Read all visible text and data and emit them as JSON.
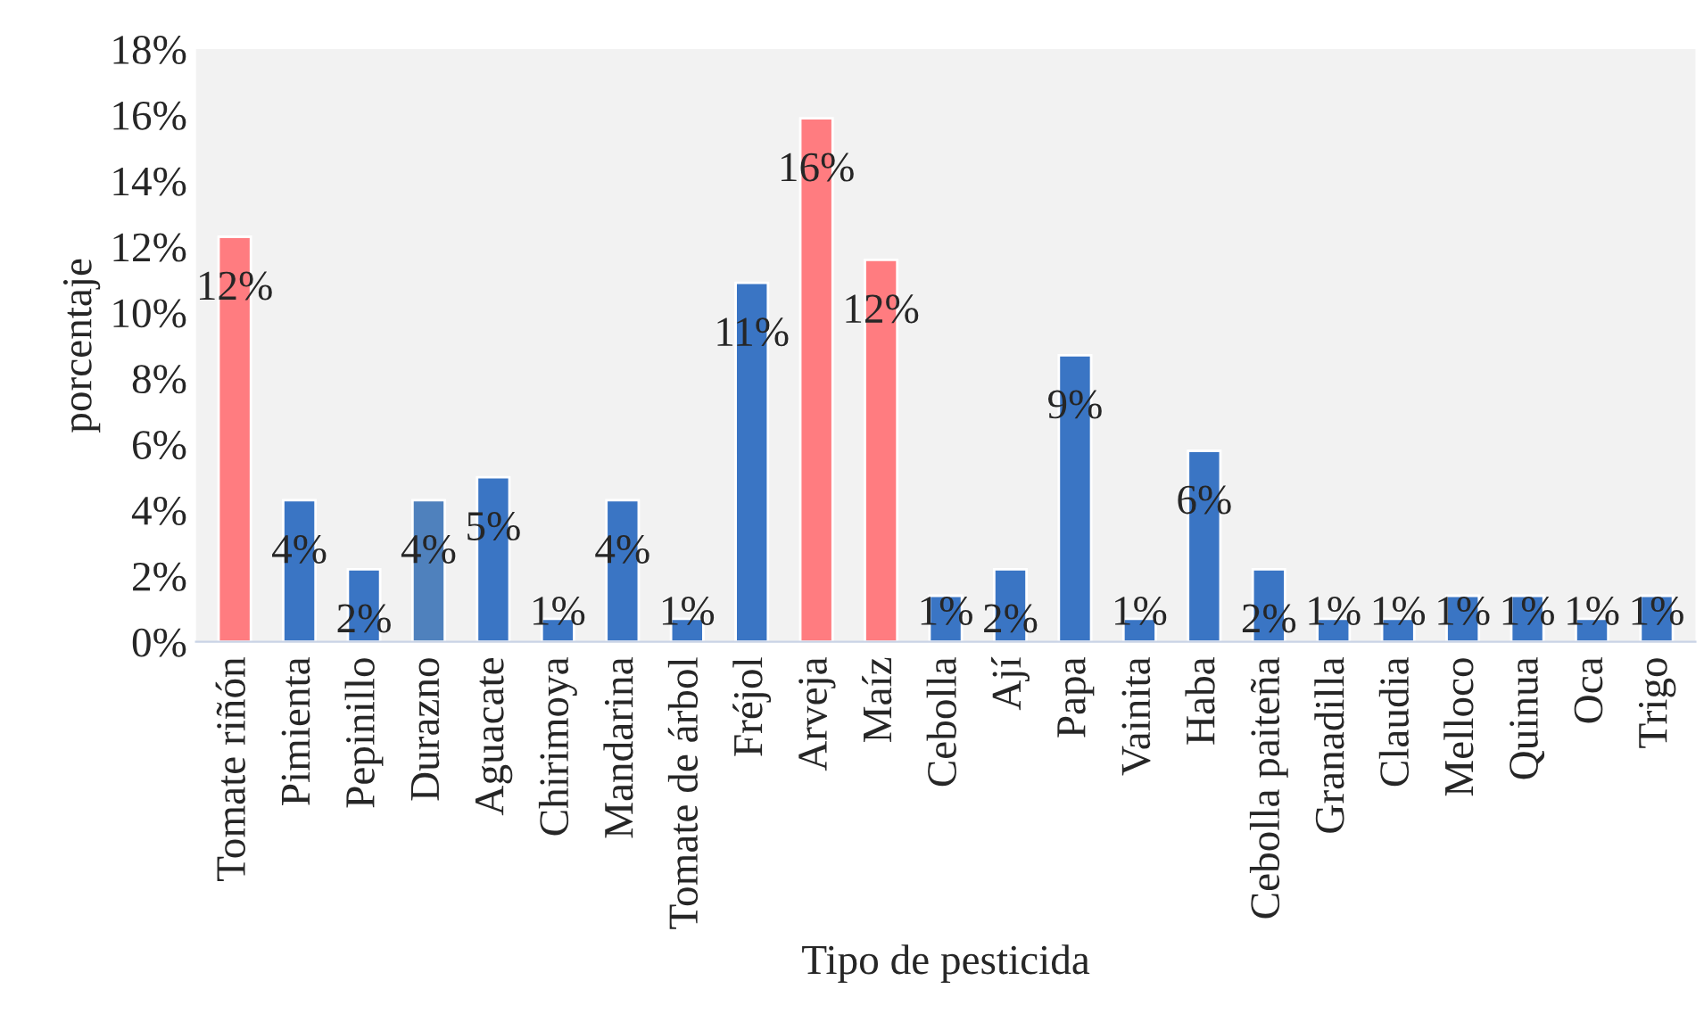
{
  "chart_data": {
    "type": "bar",
    "xlabel": "Tipo de pesticida",
    "ylabel": "porcentaje",
    "categories": [
      "Tomate riñón",
      "Pimienta",
      "Pepinillo",
      "Durazno",
      "Aguacate",
      "Chirimoya",
      "Mandarina",
      "Tomate de árbol",
      "Fréjol",
      "Arveja",
      "Maíz",
      "Cebolla",
      "Ají",
      "Papa",
      "Vainita",
      "Haba",
      "Cebolla paiteña",
      "Granadilla",
      "Claudia",
      "Melloco",
      "Quinua",
      "Oca",
      "Trigo"
    ],
    "values": [
      12.3,
      4.3,
      2.2,
      4.3,
      5.0,
      0.7,
      4.3,
      0.7,
      10.9,
      15.9,
      11.6,
      1.4,
      2.2,
      8.7,
      0.7,
      5.8,
      2.2,
      0.7,
      0.7,
      1.4,
      1.4,
      0.7,
      1.4
    ],
    "colors": [
      "#ff7c80",
      "#3a75c4",
      "#3a75c4",
      "#4f81bd",
      "#3a75c4",
      "#3a75c4",
      "#3a75c4",
      "#3a75c4",
      "#3a75c4",
      "#ff7c80",
      "#ff7c80",
      "#3a75c4",
      "#3a75c4",
      "#3a75c4",
      "#3a75c4",
      "#3a75c4",
      "#3a75c4",
      "#3a75c4",
      "#3a75c4",
      "#3a75c4",
      "#3a75c4",
      "#3a75c4",
      "#3a75c4"
    ],
    "value_labels": [
      "12%",
      "4%",
      "2%",
      "4%",
      "5%",
      "1%",
      "4%",
      "1%",
      "11%",
      "16%",
      "12%",
      "1%",
      "2%",
      "9%",
      "1%",
      "6%",
      "2%",
      "1%",
      "1%",
      "1%",
      "1%",
      "1%",
      "1%"
    ],
    "ylim": [
      0,
      18
    ],
    "yticks": [
      {
        "value": 0,
        "label": "0%"
      },
      {
        "value": 2,
        "label": "2%"
      },
      {
        "value": 4,
        "label": "4%"
      },
      {
        "value": 6,
        "label": "6%"
      },
      {
        "value": 8,
        "label": "8%"
      },
      {
        "value": 10,
        "label": "10%"
      },
      {
        "value": 12,
        "label": "12%"
      },
      {
        "value": 14,
        "label": "14%"
      },
      {
        "value": 16,
        "label": "16%"
      },
      {
        "value": 18,
        "label": "18%"
      }
    ],
    "grid": false,
    "legend": false
  }
}
